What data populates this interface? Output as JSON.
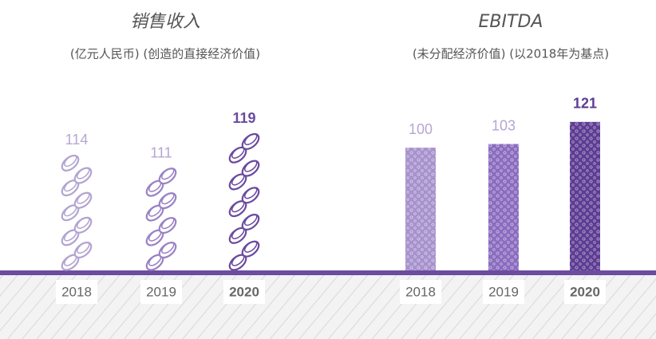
{
  "chart_data": [
    {
      "type": "pictogram",
      "title": "销售收入",
      "subtitle": "(亿元人民币) (创造的直接经济价值)",
      "categories": [
        "2018",
        "2019",
        "2020"
      ],
      "values": [
        114,
        111,
        119
      ],
      "colors": [
        "#b3a3d1",
        "#9a82c4",
        "#6a4a9f"
      ],
      "ylim": [
        88,
        125
      ]
    },
    {
      "type": "bar",
      "title": "EBITDA",
      "subtitle": "(未分配经济价值) (以2018年为基点)",
      "categories": [
        "2018",
        "2019",
        "2020"
      ],
      "values": [
        100,
        103,
        121
      ],
      "colors": [
        "#a792cd",
        "#8a6cbf",
        "#5d3c93"
      ],
      "ylim": [
        0,
        130
      ]
    }
  ]
}
